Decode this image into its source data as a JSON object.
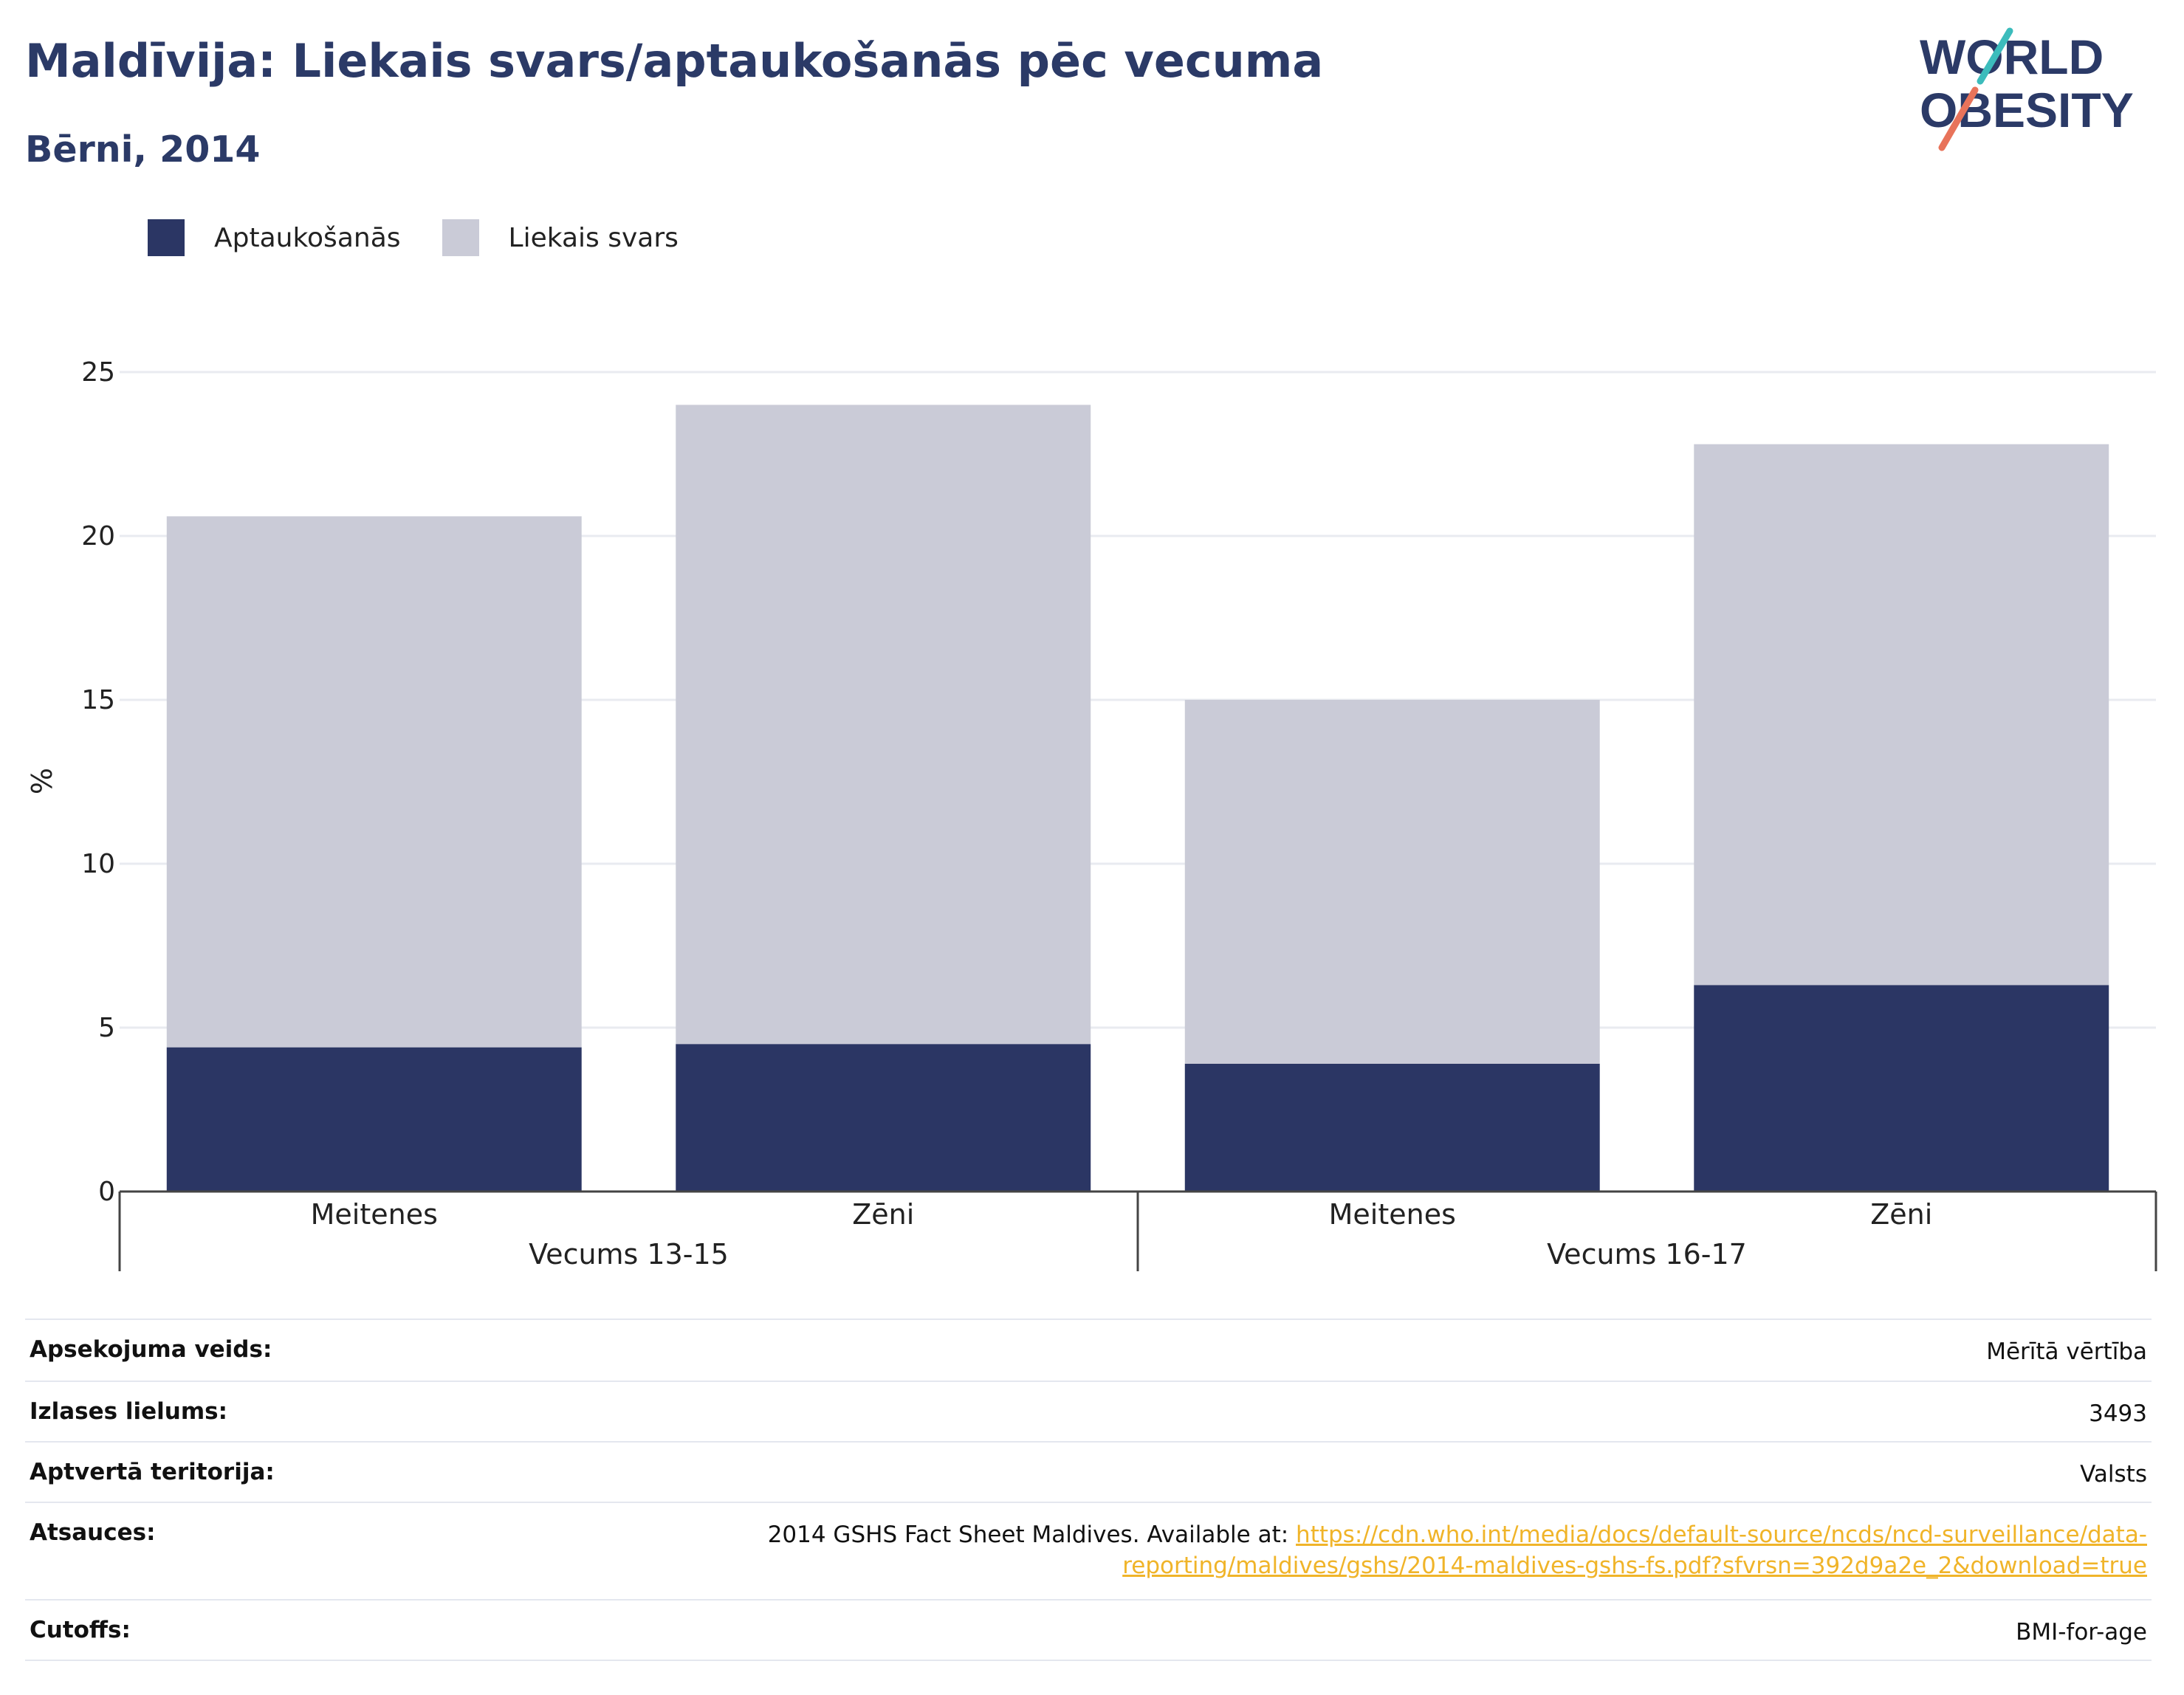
{
  "header": {
    "title": "Maldīvija: Liekais svars/aptaukošanās pēc vecuma",
    "subtitle": "Bērni, 2014",
    "logo_line1": "WORLD",
    "logo_line2": "OBESITY"
  },
  "colors": {
    "obesity": "#2b3664",
    "overweight": "#cacbd7",
    "title": "#2b3a67",
    "link": "#f0b429"
  },
  "legend": [
    {
      "label": "Aptaukošanās",
      "color": "#2b3664"
    },
    {
      "label": "Liekais svars",
      "color": "#cacbd7"
    }
  ],
  "chart_data": {
    "type": "bar",
    "stacked": true,
    "ylabel": "%",
    "ylim": [
      0,
      25
    ],
    "yticks": [
      0,
      5,
      10,
      15,
      20,
      25
    ],
    "groups": [
      "Vecums 13-15",
      "Vecums 16-17"
    ],
    "categories": [
      "Meitenes",
      "Zēni",
      "Meitenes",
      "Zēni"
    ],
    "category_group": [
      0,
      0,
      1,
      1
    ],
    "series": [
      {
        "name": "Aptaukošanās",
        "values": [
          4.4,
          4.5,
          3.9,
          6.3
        ]
      },
      {
        "name": "Liekais svars",
        "values": [
          16.2,
          19.5,
          11.1,
          16.5
        ]
      }
    ],
    "grid": true,
    "legend_position": "top-left"
  },
  "meta": {
    "rows": [
      {
        "label": "Apsekojuma veids:",
        "value": "Mērītā vērtība"
      },
      {
        "label": "Izlases lielums:",
        "value": "3493"
      },
      {
        "label": "Aptvertā teritorija:",
        "value": "Valsts"
      },
      {
        "label": "Atsauces:",
        "value_prefix": "2014 GSHS Fact Sheet Maldives. Available at: ",
        "link_line1": "https://cdn.who.int/media/docs/default-source/ncds/ncd-surveillance/data-",
        "link_line2": "reporting/maldives/gshs/2014-maldives-gshs-fs.pdf?sfvrsn=392d9a2e_2&download=true"
      },
      {
        "label": "Cutoffs:",
        "value": "BMI-for-age"
      }
    ]
  }
}
